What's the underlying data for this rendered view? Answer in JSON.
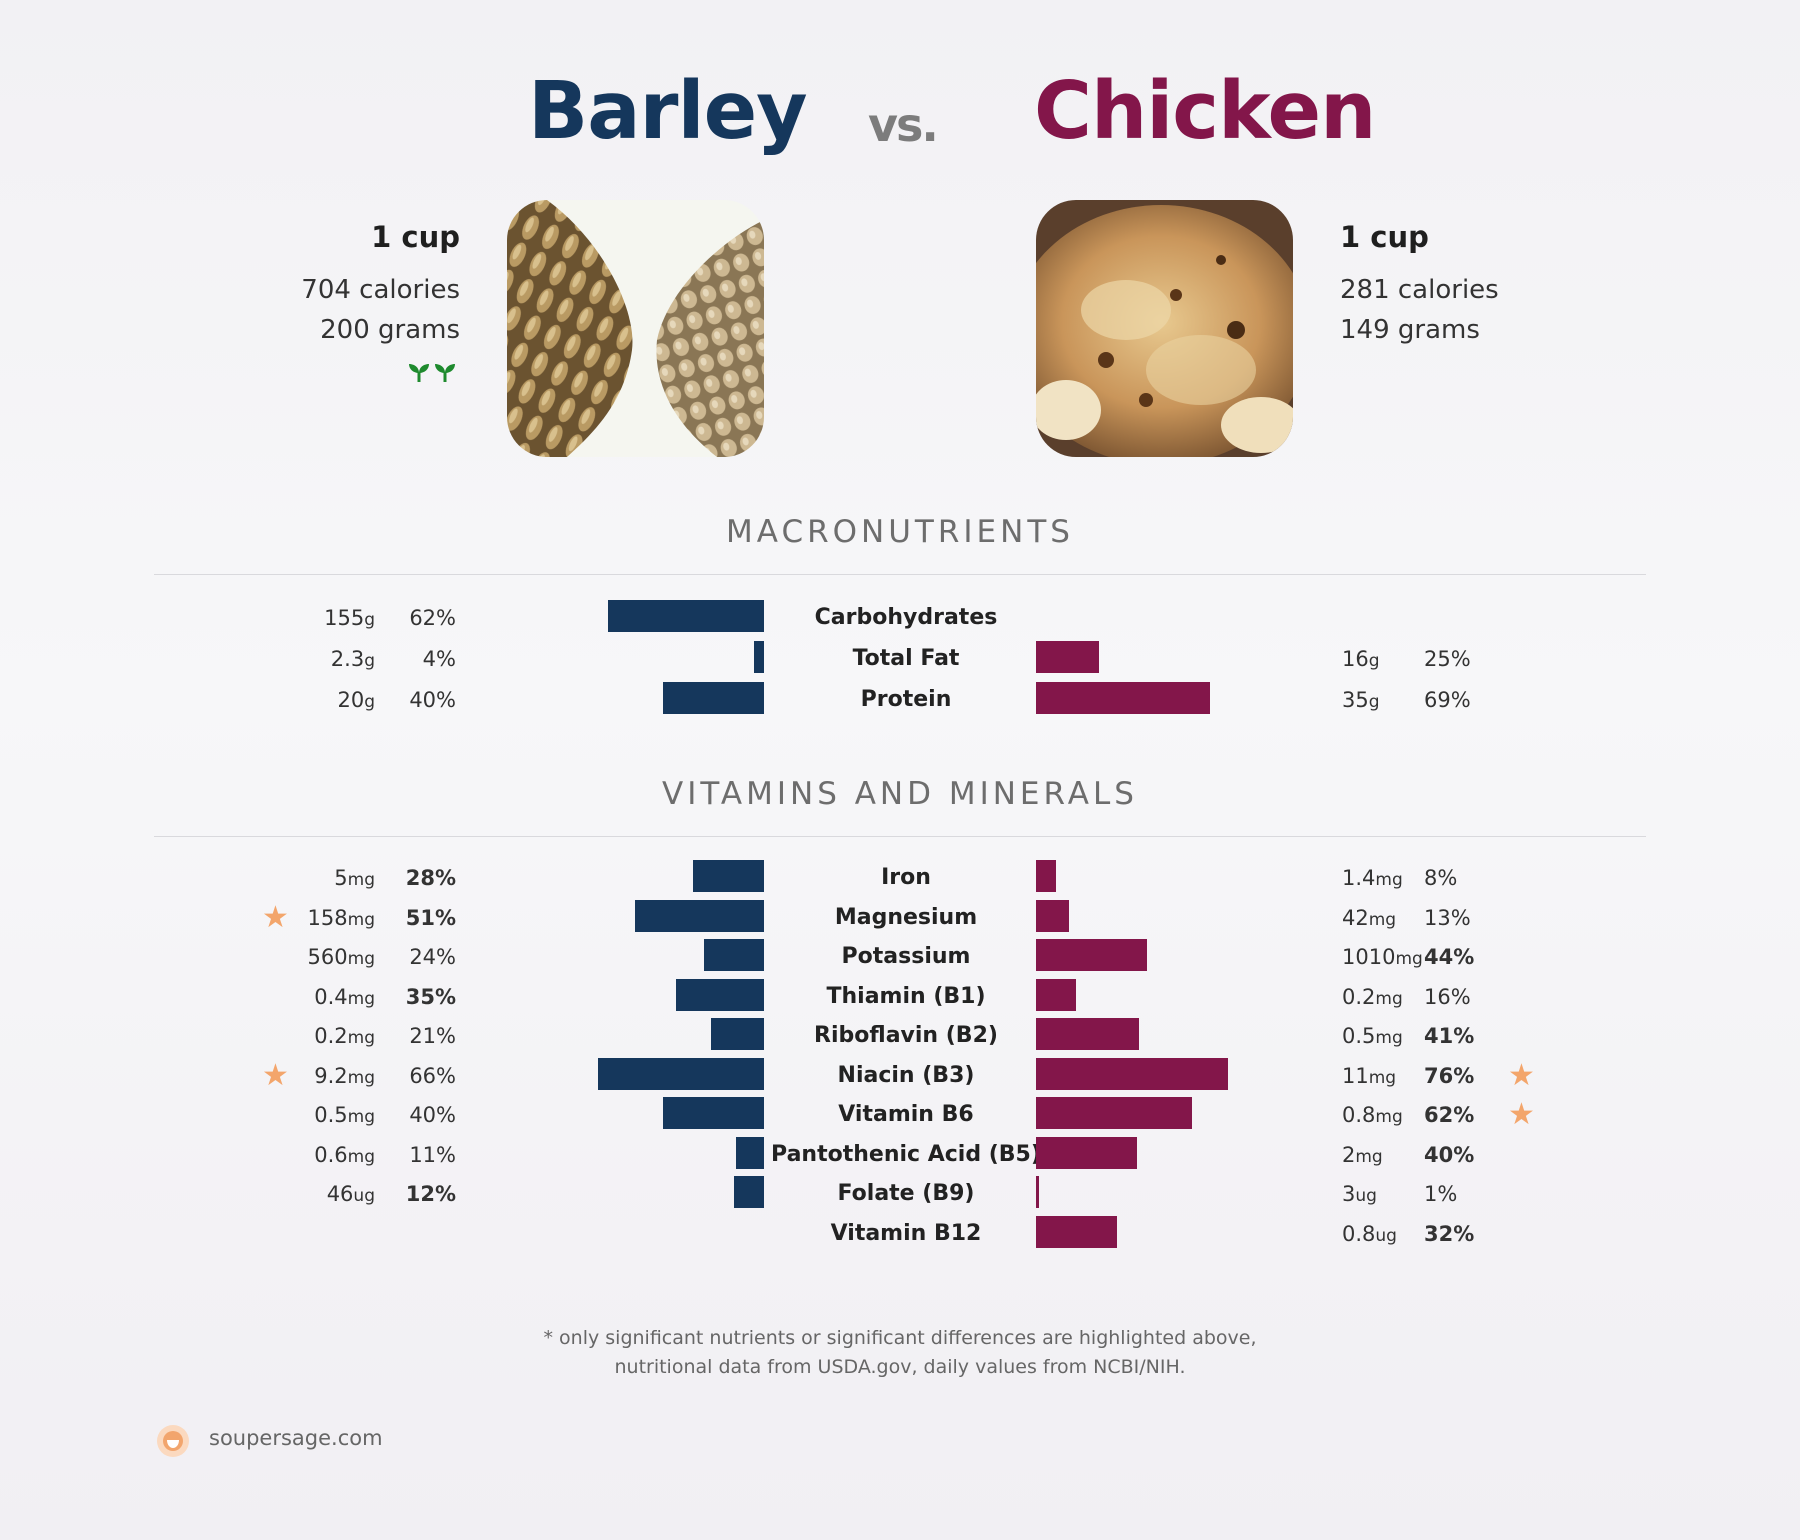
{
  "header": {
    "left_food": "Barley",
    "vs": "vs.",
    "right_food": "Chicken"
  },
  "left": {
    "portion": "1 cup",
    "calories": "704 calories",
    "grams": "200 grams",
    "badge_icon": "sprout-icon"
  },
  "right": {
    "portion": "1 cup",
    "calories": "281 calories",
    "grams": "149 grams"
  },
  "colors": {
    "left": "#15375c",
    "right": "#83164a",
    "star": "#f3a56b"
  },
  "sections": {
    "macros": "MACRONUTRIENTS",
    "vitamins": "VITAMINS AND MINERALS"
  },
  "chart_data": [
    {
      "type": "bar",
      "title": "MACRONUTRIENTS",
      "categories": [
        "Carbohydrates",
        "Total Fat",
        "Protein"
      ],
      "series": [
        {
          "name": "Barley",
          "values": [
            62,
            4,
            40
          ],
          "amounts": [
            "155",
            "2.3",
            "20"
          ],
          "units": [
            "g",
            "g",
            "g"
          ],
          "pct_labels": [
            "62%",
            "4%",
            "40%"
          ],
          "bold": [
            false,
            false,
            false
          ],
          "star": [
            false,
            false,
            false
          ]
        },
        {
          "name": "Chicken",
          "values": [
            0,
            25,
            69
          ],
          "amounts": [
            "",
            "16",
            "35"
          ],
          "units": [
            "",
            "g",
            "g"
          ],
          "pct_labels": [
            "",
            "25%",
            "69%"
          ],
          "bold": [
            false,
            false,
            false
          ],
          "star": [
            false,
            false,
            false
          ]
        }
      ]
    },
    {
      "type": "bar",
      "title": "VITAMINS AND MINERALS",
      "categories": [
        "Iron",
        "Magnesium",
        "Potassium",
        "Thiamin (B1)",
        "Riboflavin (B2)",
        "Niacin (B3)",
        "Vitamin B6",
        "Pantothenic Acid (B5)",
        "Folate (B9)",
        "Vitamin B12"
      ],
      "series": [
        {
          "name": "Barley",
          "values": [
            28,
            51,
            24,
            35,
            21,
            66,
            40,
            11,
            12,
            0
          ],
          "amounts": [
            "5",
            "158",
            "560",
            "0.4",
            "0.2",
            "9.2",
            "0.5",
            "0.6",
            "46",
            ""
          ],
          "units": [
            "mg",
            "mg",
            "mg",
            "mg",
            "mg",
            "mg",
            "mg",
            "mg",
            "ug",
            ""
          ],
          "pct_labels": [
            "28%",
            "51%",
            "24%",
            "35%",
            "21%",
            "66%",
            "40%",
            "11%",
            "12%",
            ""
          ],
          "bold": [
            true,
            true,
            false,
            true,
            false,
            false,
            false,
            false,
            true,
            false
          ],
          "star": [
            false,
            true,
            false,
            false,
            false,
            true,
            false,
            false,
            false,
            false
          ]
        },
        {
          "name": "Chicken",
          "values": [
            8,
            13,
            44,
            16,
            41,
            76,
            62,
            40,
            1,
            32
          ],
          "amounts": [
            "1.4",
            "42",
            "1010",
            "0.2",
            "0.5",
            "11",
            "0.8",
            "2",
            "3",
            "0.8"
          ],
          "units": [
            "mg",
            "mg",
            "mg",
            "mg",
            "mg",
            "mg",
            "mg",
            "mg",
            "ug",
            "ug"
          ],
          "pct_labels": [
            "8%",
            "13%",
            "44%",
            "16%",
            "41%",
            "76%",
            "62%",
            "40%",
            "1%",
            "32%"
          ],
          "bold": [
            false,
            false,
            true,
            false,
            true,
            true,
            true,
            true,
            false,
            true
          ],
          "star": [
            false,
            false,
            false,
            false,
            false,
            true,
            true,
            false,
            false,
            false
          ]
        }
      ]
    }
  ],
  "footer": {
    "line1": "* only significant nutrients or significant differences are highlighted above,",
    "line2": "nutritional data from USDA.gov, daily values from NCBI/NIH.",
    "brand": "soupersage.com",
    "logo_icon": "soupersage-logo-icon"
  }
}
